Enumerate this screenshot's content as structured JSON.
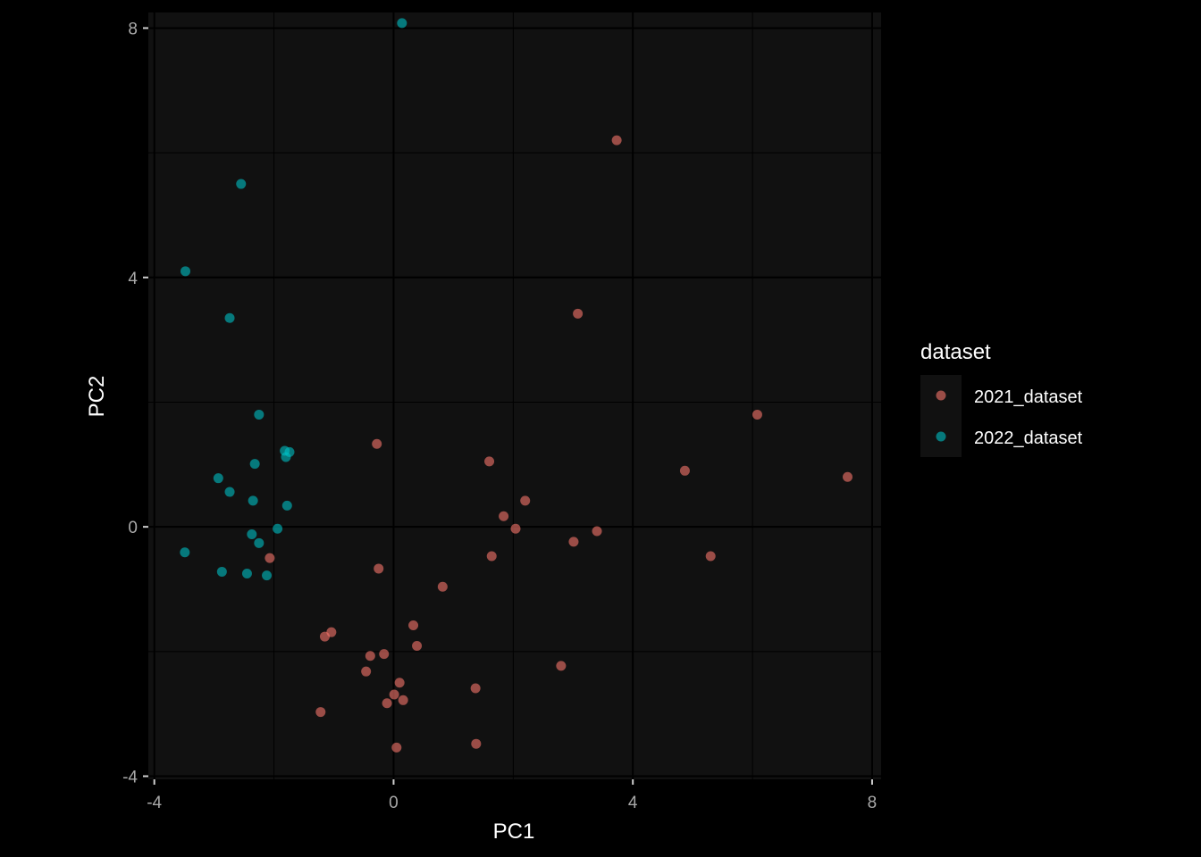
{
  "chart_data": {
    "type": "scatter",
    "title": "",
    "xlabel": "PC1",
    "ylabel": "PC2",
    "xlim": [
      -4.1,
      8.15
    ],
    "ylim": [
      -4.05,
      8.25
    ],
    "xticks": [
      -4,
      0,
      4,
      8
    ],
    "yticks": [
      -4,
      0,
      4,
      8
    ],
    "x_tick_labels": [
      "-4",
      "0",
      "4",
      "8"
    ],
    "y_tick_labels": [
      "-4",
      "0",
      "4",
      "8"
    ],
    "grid": true,
    "legend": {
      "title": "dataset",
      "placement": "right"
    },
    "colors": {
      "background": "#000000",
      "panel": "#111111",
      "grid": "#000000"
    },
    "series": [
      {
        "name": "2021_dataset",
        "color": "#F8766D",
        "points": [
          [
            3.73,
            6.2
          ],
          [
            3.08,
            3.42
          ],
          [
            6.08,
            1.8
          ],
          [
            7.59,
            0.8
          ],
          [
            4.87,
            0.9
          ],
          [
            1.6,
            1.05
          ],
          [
            -0.28,
            1.33
          ],
          [
            2.2,
            0.42
          ],
          [
            1.84,
            0.17
          ],
          [
            2.04,
            -0.03
          ],
          [
            3.4,
            -0.07
          ],
          [
            3.01,
            -0.24
          ],
          [
            1.64,
            -0.47
          ],
          [
            5.3,
            -0.47
          ],
          [
            -2.07,
            -0.5
          ],
          [
            -0.25,
            -0.67
          ],
          [
            0.82,
            -0.96
          ],
          [
            0.33,
            -1.58
          ],
          [
            -1.04,
            -1.69
          ],
          [
            -1.15,
            -1.76
          ],
          [
            0.39,
            -1.91
          ],
          [
            -0.16,
            -2.04
          ],
          [
            -0.39,
            -2.07
          ],
          [
            2.8,
            -2.23
          ],
          [
            -0.46,
            -2.32
          ],
          [
            0.1,
            -2.5
          ],
          [
            1.37,
            -2.59
          ],
          [
            0.01,
            -2.69
          ],
          [
            0.16,
            -2.78
          ],
          [
            -0.11,
            -2.83
          ],
          [
            -1.22,
            -2.97
          ],
          [
            1.38,
            -3.48
          ],
          [
            0.05,
            -3.54
          ]
        ]
      },
      {
        "name": "2022_dataset",
        "color": "#00BFC4",
        "points": [
          [
            0.14,
            8.08
          ],
          [
            -2.55,
            5.5
          ],
          [
            -3.48,
            4.1
          ],
          [
            -2.74,
            3.35
          ],
          [
            -2.25,
            1.8
          ],
          [
            -1.82,
            1.22
          ],
          [
            -1.74,
            1.2
          ],
          [
            -1.8,
            1.12
          ],
          [
            -2.32,
            1.01
          ],
          [
            -2.93,
            0.78
          ],
          [
            -2.74,
            0.56
          ],
          [
            -2.35,
            0.42
          ],
          [
            -1.78,
            0.34
          ],
          [
            -1.94,
            -0.03
          ],
          [
            -2.37,
            -0.12
          ],
          [
            -2.25,
            -0.26
          ],
          [
            -3.49,
            -0.41
          ],
          [
            -2.87,
            -0.72
          ],
          [
            -2.45,
            -0.75
          ],
          [
            -2.12,
            -0.78
          ]
        ]
      }
    ]
  }
}
